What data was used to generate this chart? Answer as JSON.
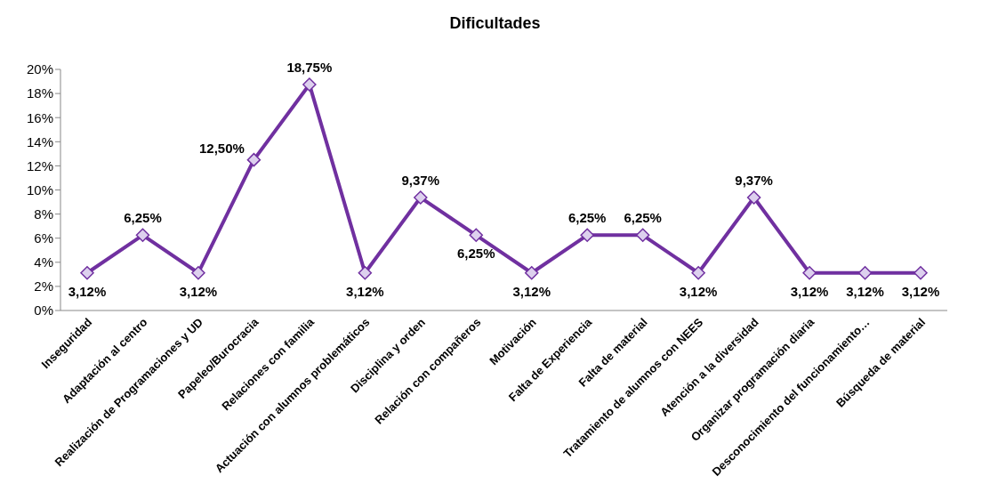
{
  "chart_data": {
    "type": "line",
    "title": "Dificultades",
    "categories": [
      "Inseguridad",
      "Adaptación al centro",
      "Realización de Programaciones y UD",
      "Papeleo/Burocracia",
      "Relaciones con familia",
      "Actuación con alumnos problemáticos",
      "Disciplina y orden",
      "Relación con compañeros",
      "Motivación",
      "Falta de Experiencia",
      "Falta de material",
      "Tratamiento de alumnos con NEES",
      "Atención a la diversidad",
      "Organizar programación diaria",
      "Desconocimiento del funcionamiento…",
      "Búsqueda de material"
    ],
    "series": [
      {
        "color": "#7030a0",
        "values": [
          3.12,
          6.25,
          3.12,
          12.5,
          18.75,
          3.12,
          9.37,
          6.25,
          3.12,
          6.25,
          6.25,
          3.12,
          9.37,
          3.12,
          3.12,
          3.12
        ],
        "value_labels": [
          "3,12%",
          "6,25%",
          "3,12%",
          "12,50%",
          "18,75%",
          "3,12%",
          "9,37%",
          "6,25%",
          "3,12%",
          "6,25%",
          "6,25%",
          "3,12%",
          "9,37%",
          "3,12%",
          "3,12%",
          "3,12%"
        ]
      }
    ],
    "ylim": [
      0,
      20
    ],
    "yticks": [
      {
        "value": 0,
        "label": "0%"
      },
      {
        "value": 2,
        "label": "2%"
      },
      {
        "value": 4,
        "label": "4%"
      },
      {
        "value": 6,
        "label": "6%"
      },
      {
        "value": 8,
        "label": "8%"
      },
      {
        "value": 10,
        "label": "10%"
      },
      {
        "value": 12,
        "label": "12%"
      },
      {
        "value": 14,
        "label": "14%"
      },
      {
        "value": 16,
        "label": "16%"
      },
      {
        "value": 18,
        "label": "18%"
      },
      {
        "value": 20,
        "label": "20%"
      }
    ],
    "grid": false,
    "legend": false,
    "marker": "diamond",
    "line_style": "solid"
  }
}
